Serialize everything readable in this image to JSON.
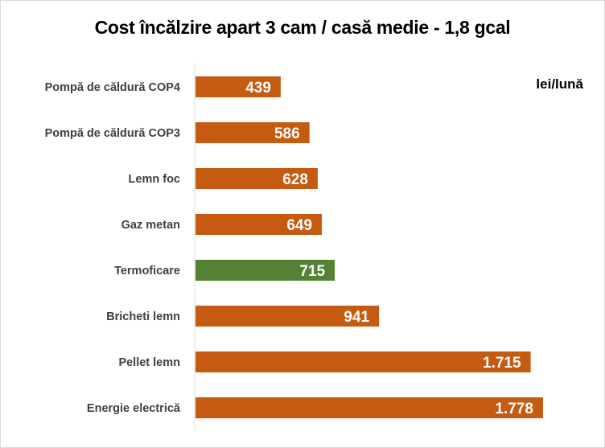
{
  "chart_data": {
    "type": "bar",
    "orientation": "horizontal",
    "title": "Cost încălzire apart 3 cam / casă medie - 1,8 gcal",
    "unit_label": "lei/lună",
    "categories": [
      "Pompă de căldură COP4",
      "Pompă de căldură COP3",
      "Lemn foc",
      "Gaz metan",
      "Termoficare",
      "Bricheti lemn",
      "Pellet lemn",
      "Energie electrică"
    ],
    "values": [
      439,
      586,
      628,
      649,
      715,
      941,
      1715,
      1778
    ],
    "data_labels": [
      "439",
      "586",
      "628",
      "649",
      "715",
      "941",
      "1.715",
      "1.778"
    ],
    "xlim": [
      0,
      2000
    ],
    "grid": false,
    "legend": "none",
    "colors": {
      "default": "#C55A11",
      "highlight": "#548235",
      "highlight_category": "Termoficare"
    }
  }
}
